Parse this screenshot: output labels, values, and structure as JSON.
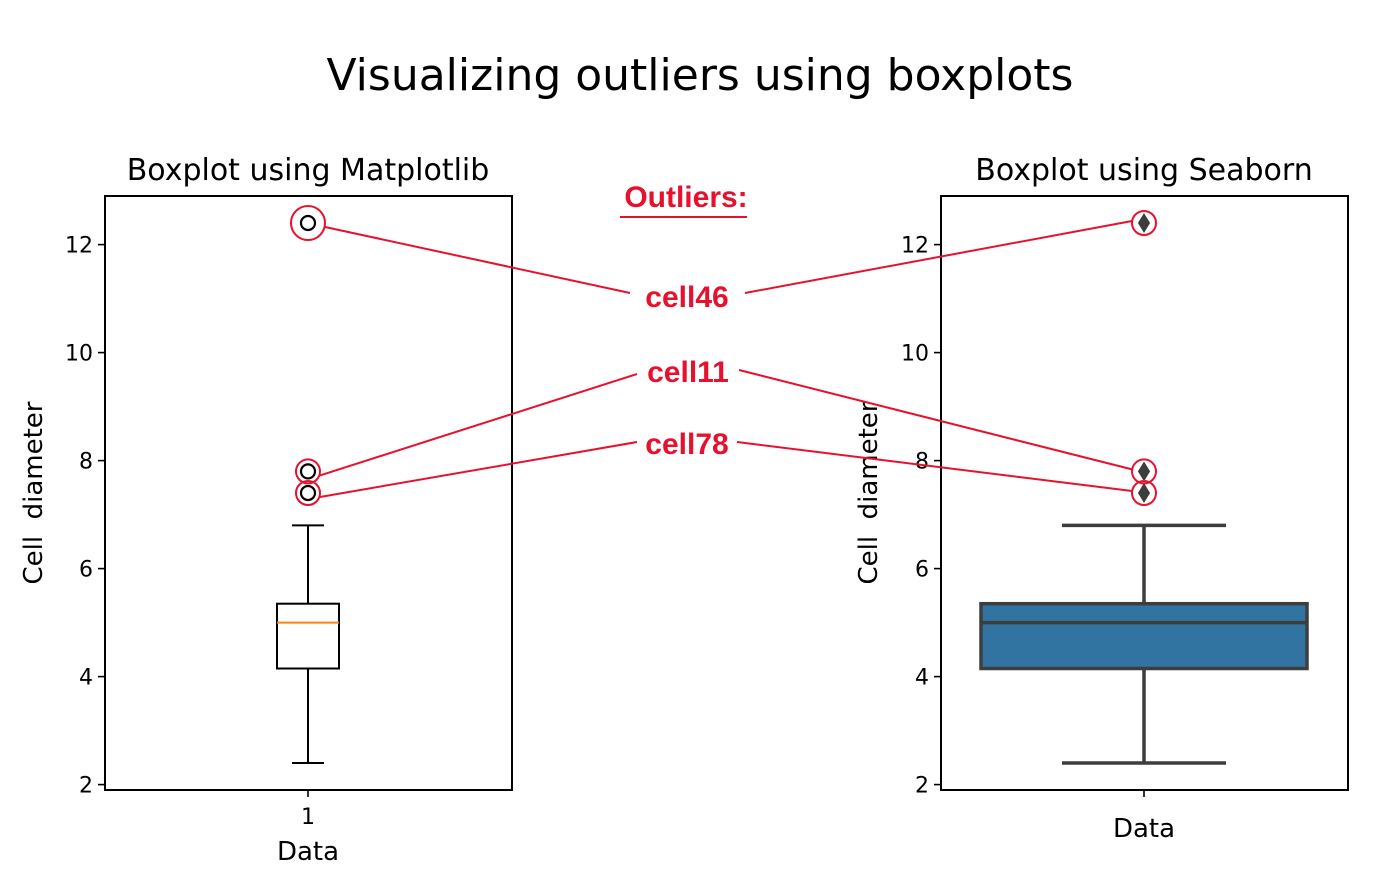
{
  "figure": {
    "title": "Visualizing outliers using boxplots"
  },
  "annotation": {
    "header": "Outliers:",
    "color": "#e8112d",
    "labels": [
      "cell46",
      "cell11",
      "cell78"
    ]
  },
  "chart_data": [
    {
      "type": "box",
      "title": "Boxplot using Matplotlib",
      "xlabel": "Data",
      "ylabel": "Cell  diameter",
      "xtick_labels": [
        "1"
      ],
      "yticks": [
        2,
        4,
        6,
        8,
        10,
        12
      ],
      "ylim": [
        1.9,
        12.9
      ],
      "grid": false,
      "box": {
        "min": 2.4,
        "q1": 4.15,
        "median": 5.0,
        "q3": 5.35,
        "max": 6.8
      },
      "outliers": [
        {
          "label": "cell46",
          "value": 12.4
        },
        {
          "label": "cell11",
          "value": 7.8
        },
        {
          "label": "cell78",
          "value": 7.4
        }
      ],
      "colors": {
        "box_edge": "#000000",
        "box_fill": "#ffffff",
        "median": "#ff7f0e",
        "outlier_marker": "#000000"
      },
      "marker": "circle"
    },
    {
      "type": "box",
      "title": "Boxplot using Seaborn",
      "xlabel": "Data",
      "ylabel": "Cell  diameter",
      "xtick_labels": [
        ""
      ],
      "yticks": [
        2,
        4,
        6,
        8,
        10,
        12
      ],
      "ylim": [
        1.9,
        12.9
      ],
      "grid": false,
      "box": {
        "min": 2.4,
        "q1": 4.15,
        "median": 5.0,
        "q3": 5.35,
        "max": 6.8
      },
      "outliers": [
        {
          "label": "cell46",
          "value": 12.4
        },
        {
          "label": "cell11",
          "value": 7.8
        },
        {
          "label": "cell78",
          "value": 7.4
        }
      ],
      "colors": {
        "box_edge": "#3d3d3d",
        "box_fill": "#3274a1",
        "median": "#3d3d3d",
        "outlier_marker": "#3d3d3d"
      },
      "marker": "diamond"
    }
  ]
}
